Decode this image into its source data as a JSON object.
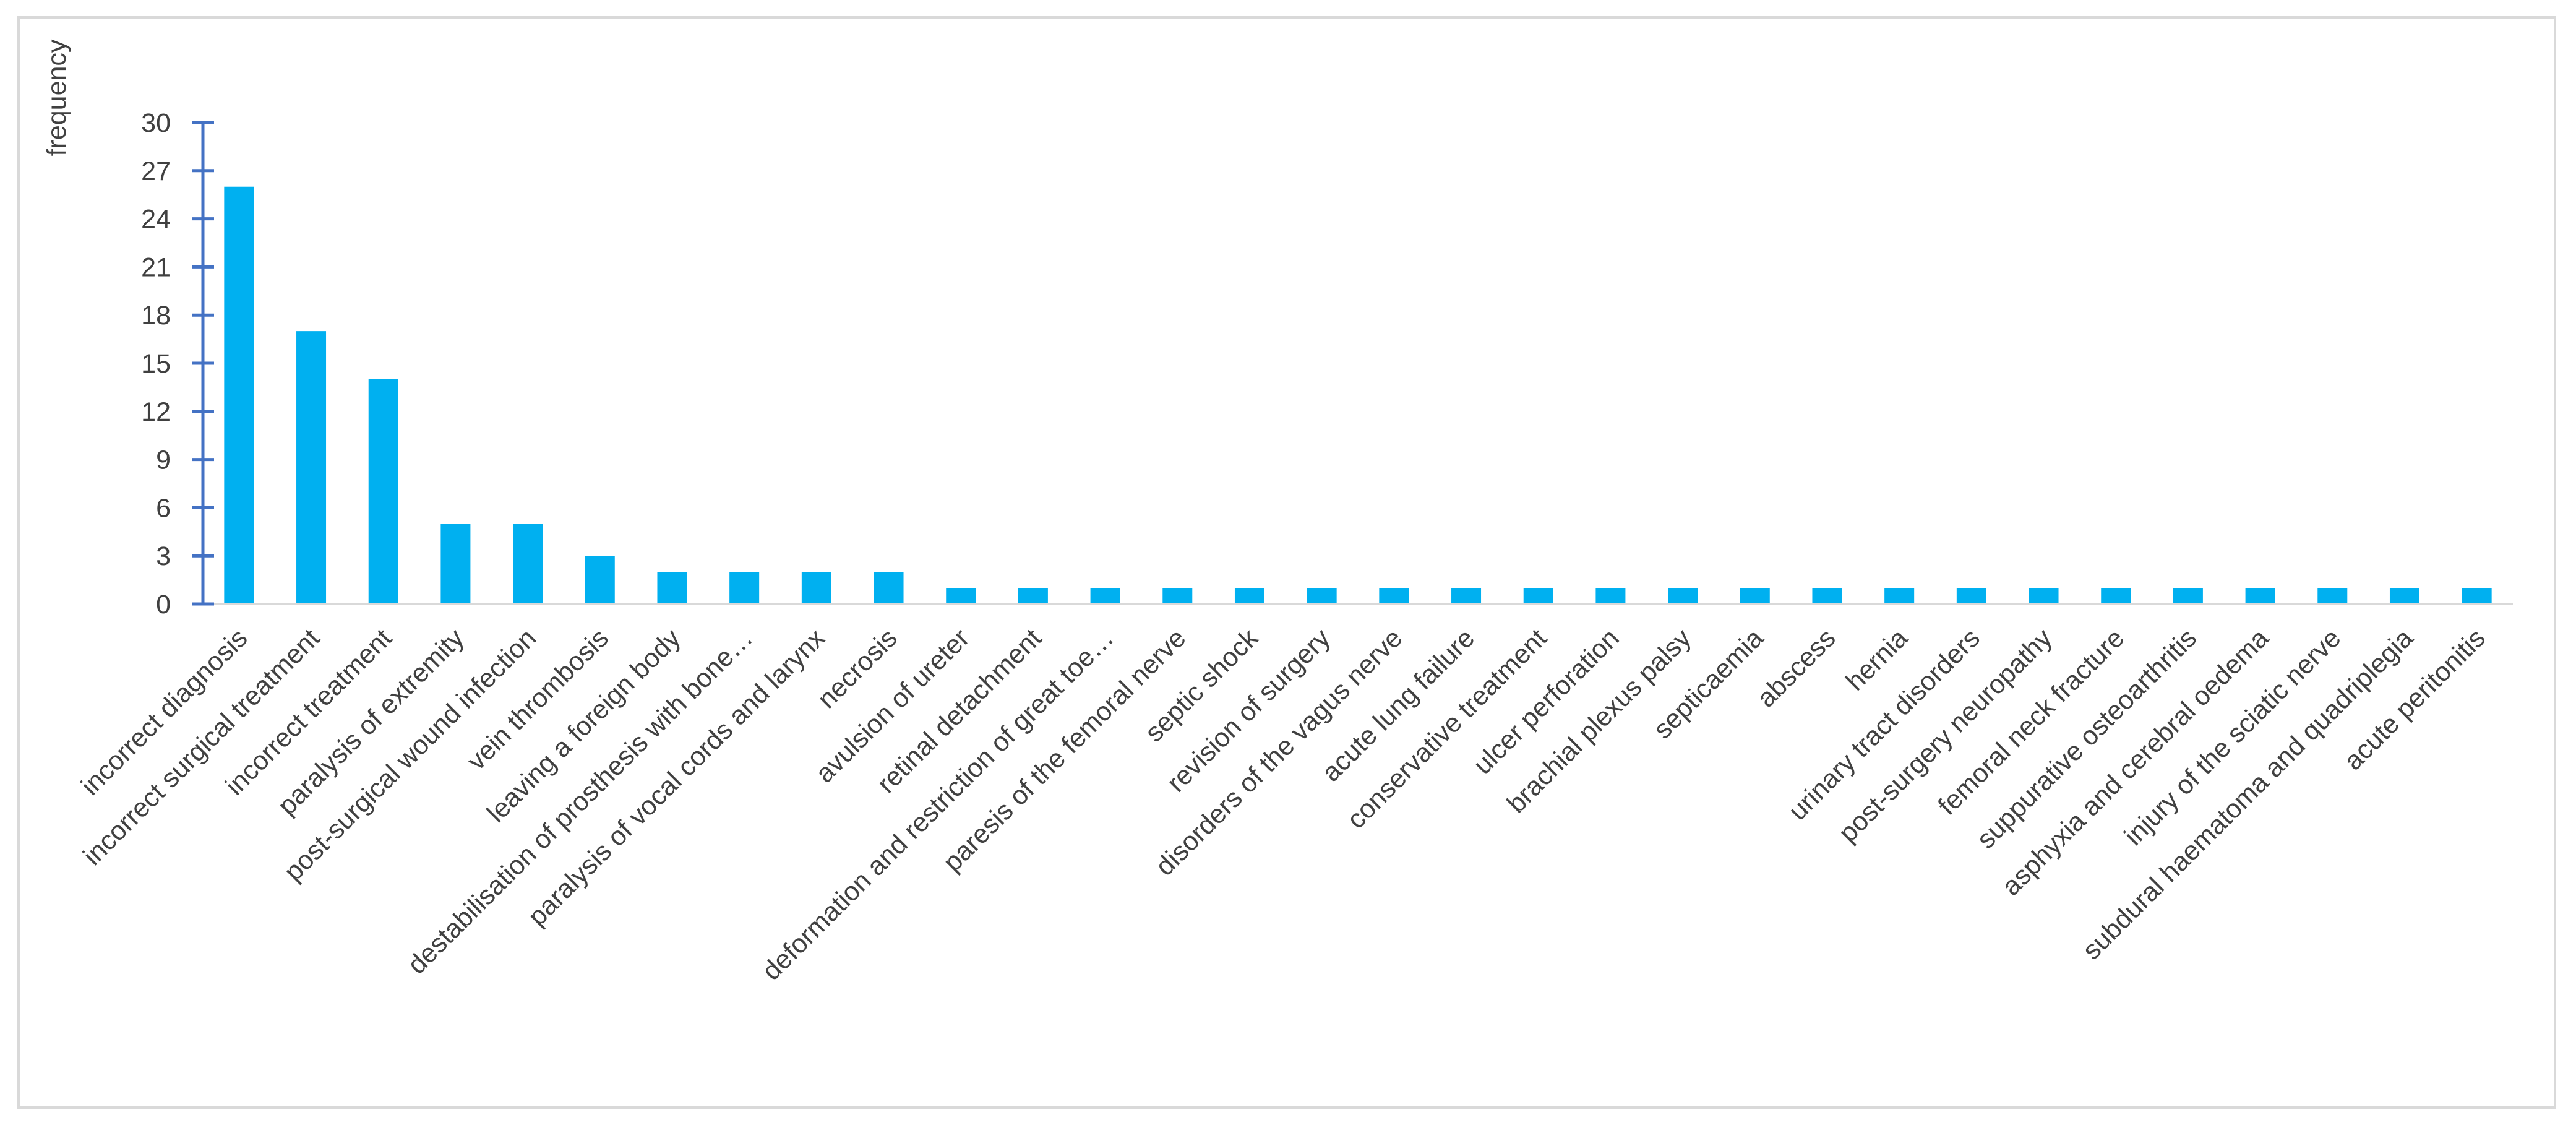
{
  "chart_data": {
    "type": "bar",
    "title": "",
    "xlabel": "",
    "ylabel": "frequency",
    "ylim": [
      0,
      30
    ],
    "yticks": [
      0,
      3,
      6,
      9,
      12,
      15,
      18,
      21,
      24,
      27,
      30
    ],
    "grid": false,
    "legend": "none",
    "bar_color": "#00b0f0",
    "axis_color": "#4472c4",
    "categories": [
      "incorrect diagnosis",
      "incorrect surgical treatment",
      "incorrect treatment",
      "paralysis of extremity",
      "post-surgical wound infection",
      "vein thrombosis",
      "leaving a foreign body",
      "destabilisation of prosthesis with bone…",
      "paralysis of vocal cords and larynx",
      "necrosis",
      "avulsion of ureter",
      "retinal detachment",
      "deformation and restriction of great toe…",
      "paresis of the femoral nerve",
      "septic shock",
      "revision of surgery",
      "disorders of the vagus nerve",
      "acute lung failure",
      "conservative treatment",
      "ulcer perforation",
      "brachial plexus palsy",
      "septicaemia",
      "abscess",
      "hernia",
      "urinary tract disorders",
      "post-surgery neuropathy",
      "femoral neck fracture",
      "suppurative osteoarthritis",
      "asphyxia and cerebral oedema",
      "injury of the sciatic nerve",
      "subdural haematoma and quadriplegia",
      "acute peritonitis"
    ],
    "values": [
      26,
      17,
      14,
      5,
      5,
      3,
      2,
      2,
      2,
      2,
      1,
      1,
      1,
      1,
      1,
      1,
      1,
      1,
      1,
      1,
      1,
      1,
      1,
      1,
      1,
      1,
      1,
      1,
      1,
      1,
      1,
      1
    ]
  }
}
